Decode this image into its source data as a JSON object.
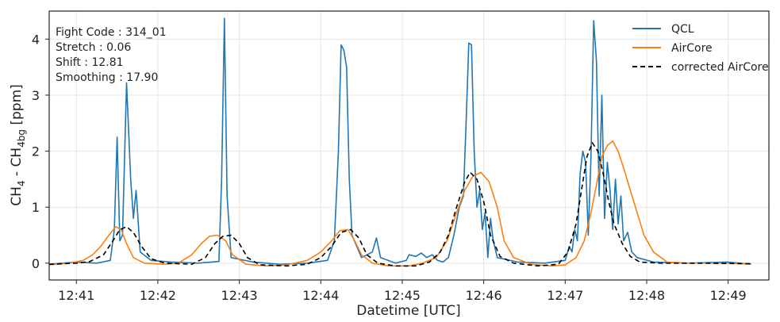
{
  "chart_data": {
    "type": "line",
    "xlabel": "Datetime [UTC]",
    "ylabel": {
      "main": "CH",
      "sub1": "4",
      "mid": " - CH",
      "sub2": "4bg",
      "unit": " [ppm]"
    },
    "xlim": [
      "12:40:40",
      "12:49:30"
    ],
    "ylim": [
      -0.3,
      4.5
    ],
    "x_ticks": [
      "12:41",
      "12:42",
      "12:43",
      "12:44",
      "12:45",
      "12:46",
      "12:47",
      "12:48",
      "12:49"
    ],
    "y_ticks": [
      0,
      1,
      2,
      3,
      4
    ],
    "grid": true,
    "legend_position": "top-right",
    "annotations": [
      "Fight Code : 314_01",
      "Stretch : 0.06",
      "Shift : 12.81",
      "Smoothing : 17.90"
    ],
    "series": [
      {
        "name": "QCL",
        "color": "#1f77b4",
        "style": "solid",
        "points": [
          [
            "12:40:40",
            -0.02
          ],
          [
            "12:41:00",
            0.02
          ],
          [
            "12:41:15",
            0.0
          ],
          [
            "12:41:25",
            0.05
          ],
          [
            "12:41:28",
            0.6
          ],
          [
            "12:41:30",
            2.25
          ],
          [
            "12:41:32",
            0.4
          ],
          [
            "12:41:34",
            0.5
          ],
          [
            "12:41:37",
            3.22
          ],
          [
            "12:41:40",
            1.5
          ],
          [
            "12:41:42",
            0.8
          ],
          [
            "12:41:44",
            1.3
          ],
          [
            "12:41:47",
            0.2
          ],
          [
            "12:41:55",
            0.05
          ],
          [
            "12:42:10",
            0.02
          ],
          [
            "12:42:30",
            0.0
          ],
          [
            "12:42:45",
            0.03
          ],
          [
            "12:42:47",
            1.5
          ],
          [
            "12:42:49",
            4.37
          ],
          [
            "12:42:51",
            1.2
          ],
          [
            "12:42:54",
            0.1
          ],
          [
            "12:43:10",
            0.02
          ],
          [
            "12:43:30",
            -0.02
          ],
          [
            "12:43:50",
            0.0
          ],
          [
            "12:44:05",
            0.05
          ],
          [
            "12:44:10",
            0.4
          ],
          [
            "12:44:13",
            2.0
          ],
          [
            "12:44:15",
            3.9
          ],
          [
            "12:44:17",
            3.8
          ],
          [
            "12:44:19",
            3.5
          ],
          [
            "12:44:21",
            1.5
          ],
          [
            "12:44:23",
            0.5
          ],
          [
            "12:44:30",
            0.1
          ],
          [
            "12:44:38",
            0.2
          ],
          [
            "12:44:41",
            0.45
          ],
          [
            "12:44:44",
            0.1
          ],
          [
            "12:44:55",
            0.0
          ],
          [
            "12:45:03",
            0.05
          ],
          [
            "12:45:05",
            0.15
          ],
          [
            "12:45:10",
            0.12
          ],
          [
            "12:45:14",
            0.18
          ],
          [
            "12:45:18",
            0.1
          ],
          [
            "12:45:22",
            0.15
          ],
          [
            "12:45:26",
            0.05
          ],
          [
            "12:45:30",
            0.02
          ],
          [
            "12:45:34",
            0.1
          ],
          [
            "12:45:38",
            0.5
          ],
          [
            "12:45:42",
            1.0
          ],
          [
            "12:45:45",
            1.2
          ],
          [
            "12:45:47",
            2.5
          ],
          [
            "12:45:49",
            3.93
          ],
          [
            "12:45:51",
            3.9
          ],
          [
            "12:45:53",
            2.0
          ],
          [
            "12:45:55",
            1.0
          ],
          [
            "12:45:57",
            1.3
          ],
          [
            "12:45:59",
            0.6
          ],
          [
            "12:46:01",
            0.9
          ],
          [
            "12:46:03",
            0.1
          ],
          [
            "12:46:05",
            0.8
          ],
          [
            "12:46:07",
            0.4
          ],
          [
            "12:46:10",
            0.1
          ],
          [
            "12:46:25",
            0.02
          ],
          [
            "12:46:45",
            0.0
          ],
          [
            "12:47:00",
            0.05
          ],
          [
            "12:47:03",
            0.3
          ],
          [
            "12:47:05",
            0.2
          ],
          [
            "12:47:07",
            0.6
          ],
          [
            "12:47:09",
            0.4
          ],
          [
            "12:47:11",
            1.6
          ],
          [
            "12:47:13",
            2.0
          ],
          [
            "12:47:15",
            1.8
          ],
          [
            "12:47:17",
            0.5
          ],
          [
            "12:47:19",
            1.9
          ],
          [
            "12:47:21",
            4.33
          ],
          [
            "12:47:23",
            3.6
          ],
          [
            "12:47:25",
            1.2
          ],
          [
            "12:47:27",
            3.0
          ],
          [
            "12:47:29",
            0.8
          ],
          [
            "12:47:31",
            1.8
          ],
          [
            "12:47:33",
            1.3
          ],
          [
            "12:47:35",
            0.6
          ],
          [
            "12:47:37",
            1.5
          ],
          [
            "12:47:39",
            0.7
          ],
          [
            "12:47:41",
            1.2
          ],
          [
            "12:47:43",
            0.4
          ],
          [
            "12:47:46",
            0.55
          ],
          [
            "12:47:49",
            0.2
          ],
          [
            "12:47:53",
            0.1
          ],
          [
            "12:48:05",
            0.02
          ],
          [
            "12:48:30",
            0.0
          ],
          [
            "12:49:00",
            0.02
          ],
          [
            "12:49:17",
            -0.02
          ]
        ]
      },
      {
        "name": "AirCore",
        "color": "#ff7f0e",
        "style": "solid",
        "points": [
          [
            "12:40:40",
            -0.03
          ],
          [
            "12:40:55",
            0.0
          ],
          [
            "12:41:05",
            0.05
          ],
          [
            "12:41:12",
            0.15
          ],
          [
            "12:41:18",
            0.3
          ],
          [
            "12:41:24",
            0.5
          ],
          [
            "12:41:29",
            0.65
          ],
          [
            "12:41:33",
            0.6
          ],
          [
            "12:41:37",
            0.35
          ],
          [
            "12:41:42",
            0.1
          ],
          [
            "12:41:50",
            0.0
          ],
          [
            "12:42:05",
            -0.02
          ],
          [
            "12:42:15",
            0.0
          ],
          [
            "12:42:25",
            0.15
          ],
          [
            "12:42:32",
            0.35
          ],
          [
            "12:42:38",
            0.48
          ],
          [
            "12:42:44",
            0.5
          ],
          [
            "12:42:50",
            0.4
          ],
          [
            "12:42:55",
            0.15
          ],
          [
            "12:43:05",
            -0.02
          ],
          [
            "12:43:20",
            -0.05
          ],
          [
            "12:43:35",
            -0.03
          ],
          [
            "12:43:50",
            0.05
          ],
          [
            "12:44:00",
            0.2
          ],
          [
            "12:44:08",
            0.4
          ],
          [
            "12:44:14",
            0.58
          ],
          [
            "12:44:20",
            0.6
          ],
          [
            "12:44:25",
            0.4
          ],
          [
            "12:44:30",
            0.15
          ],
          [
            "12:44:38",
            0.0
          ],
          [
            "12:44:50",
            -0.05
          ],
          [
            "12:45:05",
            -0.05
          ],
          [
            "12:45:15",
            0.0
          ],
          [
            "12:45:25",
            0.1
          ],
          [
            "12:45:33",
            0.4
          ],
          [
            "12:45:40",
            0.9
          ],
          [
            "12:45:46",
            1.3
          ],
          [
            "12:45:52",
            1.55
          ],
          [
            "12:45:58",
            1.62
          ],
          [
            "12:46:04",
            1.45
          ],
          [
            "12:46:10",
            1.0
          ],
          [
            "12:46:15",
            0.4
          ],
          [
            "12:46:22",
            0.1
          ],
          [
            "12:46:35",
            -0.02
          ],
          [
            "12:46:50",
            -0.05
          ],
          [
            "12:47:00",
            -0.03
          ],
          [
            "12:47:08",
            0.1
          ],
          [
            "12:47:14",
            0.4
          ],
          [
            "12:47:19",
            0.9
          ],
          [
            "12:47:23",
            1.4
          ],
          [
            "12:47:27",
            1.9
          ],
          [
            "12:47:31",
            2.1
          ],
          [
            "12:47:35",
            2.18
          ],
          [
            "12:47:39",
            2.0
          ],
          [
            "12:47:43",
            1.7
          ],
          [
            "12:47:48",
            1.3
          ],
          [
            "12:47:53",
            0.9
          ],
          [
            "12:47:58",
            0.5
          ],
          [
            "12:48:05",
            0.2
          ],
          [
            "12:48:15",
            0.02
          ],
          [
            "12:48:30",
            0.0
          ],
          [
            "12:49:00",
            0.0
          ],
          [
            "12:49:17",
            -0.02
          ]
        ]
      },
      {
        "name": "corrected AirCore",
        "color": "#000000",
        "style": "dashed",
        "points": [
          [
            "12:40:40",
            -0.02
          ],
          [
            "12:41:00",
            0.0
          ],
          [
            "12:41:10",
            0.03
          ],
          [
            "12:41:20",
            0.15
          ],
          [
            "12:41:27",
            0.4
          ],
          [
            "12:41:32",
            0.6
          ],
          [
            "12:41:37",
            0.65
          ],
          [
            "12:41:42",
            0.55
          ],
          [
            "12:41:48",
            0.3
          ],
          [
            "12:41:55",
            0.08
          ],
          [
            "12:42:05",
            0.0
          ],
          [
            "12:42:25",
            -0.02
          ],
          [
            "12:42:35",
            0.1
          ],
          [
            "12:42:42",
            0.35
          ],
          [
            "12:42:48",
            0.48
          ],
          [
            "12:42:54",
            0.5
          ],
          [
            "12:43:00",
            0.35
          ],
          [
            "12:43:06",
            0.1
          ],
          [
            "12:43:15",
            -0.03
          ],
          [
            "12:43:35",
            -0.05
          ],
          [
            "12:43:50",
            -0.02
          ],
          [
            "12:44:00",
            0.1
          ],
          [
            "12:44:08",
            0.3
          ],
          [
            "12:44:15",
            0.55
          ],
          [
            "12:44:22",
            0.6
          ],
          [
            "12:44:28",
            0.45
          ],
          [
            "12:44:34",
            0.15
          ],
          [
            "12:44:42",
            0.0
          ],
          [
            "12:44:55",
            -0.05
          ],
          [
            "12:45:10",
            -0.05
          ],
          [
            "12:45:20",
            0.02
          ],
          [
            "12:45:28",
            0.2
          ],
          [
            "12:45:34",
            0.5
          ],
          [
            "12:45:40",
            1.0
          ],
          [
            "12:45:46",
            1.45
          ],
          [
            "12:45:50",
            1.62
          ],
          [
            "12:45:55",
            1.5
          ],
          [
            "12:46:00",
            1.1
          ],
          [
            "12:46:05",
            0.5
          ],
          [
            "12:46:12",
            0.12
          ],
          [
            "12:46:22",
            0.0
          ],
          [
            "12:46:40",
            -0.05
          ],
          [
            "12:46:55",
            -0.02
          ],
          [
            "12:47:02",
            0.2
          ],
          [
            "12:47:08",
            0.7
          ],
          [
            "12:47:12",
            1.3
          ],
          [
            "12:47:16",
            1.9
          ],
          [
            "12:47:20",
            2.15
          ],
          [
            "12:47:24",
            2.0
          ],
          [
            "12:47:28",
            1.6
          ],
          [
            "12:47:32",
            1.1
          ],
          [
            "12:47:36",
            0.7
          ],
          [
            "12:47:42",
            0.35
          ],
          [
            "12:47:48",
            0.12
          ],
          [
            "12:47:55",
            0.02
          ],
          [
            "12:48:10",
            0.0
          ],
          [
            "12:48:40",
            0.0
          ],
          [
            "12:49:17",
            -0.01
          ]
        ]
      }
    ]
  }
}
